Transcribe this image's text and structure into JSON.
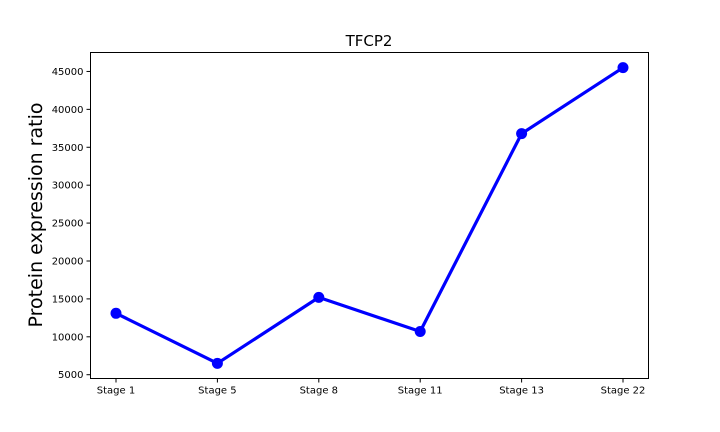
{
  "chart_data": {
    "type": "line",
    "title": "TFCP2",
    "xlabel": "",
    "ylabel": "Protein expression ratio",
    "categories": [
      "Stage 1",
      "Stage 5",
      "Stage 8",
      "Stage 11",
      "Stage 13",
      "Stage 22"
    ],
    "series": [
      {
        "values": [
          13100,
          6500,
          15200,
          10700,
          36800,
          45500
        ]
      }
    ],
    "yticks": [
      5000,
      10000,
      15000,
      20000,
      25000,
      30000,
      35000,
      40000,
      45000
    ],
    "ylim": [
      4500,
      47500
    ],
    "grid": false,
    "line_color": "#0000ff"
  }
}
